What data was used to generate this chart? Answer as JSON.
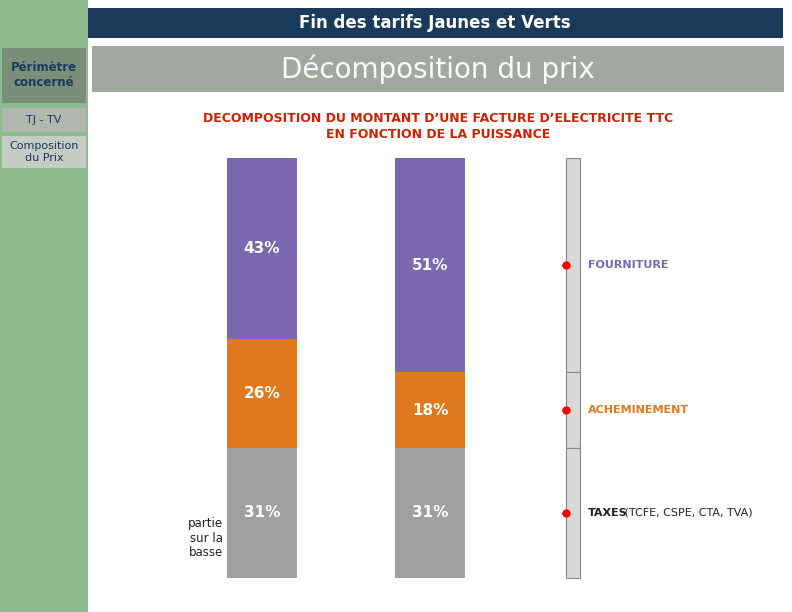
{
  "title": "Fin des tarifs Jaunes et Verts",
  "title_bg": "#1a3a5c",
  "title_color": "#ffffff",
  "sidebar_bg": "#8fbc8f",
  "sidebar_label1": "Périmètre\nconcerné",
  "sidebar_label1_bg": "#7a8f7a",
  "sidebar_label2": "TJ - TV",
  "sidebar_label2_bg": "#b0b8b0",
  "sidebar_label3": "Composition\ndu Prix",
  "sidebar_label3_bg": "#c5ccc5",
  "main_title": "Décomposition du prix",
  "main_title_bg": "#a0a8a0",
  "main_title_color": "#ffffff",
  "subtitle_line1": "DECOMPOSITION DU MONTANT D’UNE FACTURE D’ELECTRICITE TTC",
  "subtitle_line2": "EN FONCTION DE LA PUISSANCE",
  "subtitle_color": "#cc2200",
  "bar1_label": "partie\nsur la\nbasse",
  "bar1_values": [
    43,
    26,
    31
  ],
  "bar2_values": [
    51,
    18,
    31
  ],
  "bar_colors": [
    "#7b68b0",
    "#e07820",
    "#a0a0a0"
  ],
  "legend_taxes_bold": "TAXES",
  "legend_taxes_rest": " (TCFE, CSPE, CTA, TVA)",
  "legend_taxes_color": "#222222",
  "legend_acheminement": "ACHEMINEMENT",
  "legend_acheminement_color": "#e07820",
  "legend_fourniture": "FOURNITURE",
  "legend_fourniture_color": "#7b68b0",
  "fig_w": 7.92,
  "fig_h": 6.12,
  "dpi": 100
}
